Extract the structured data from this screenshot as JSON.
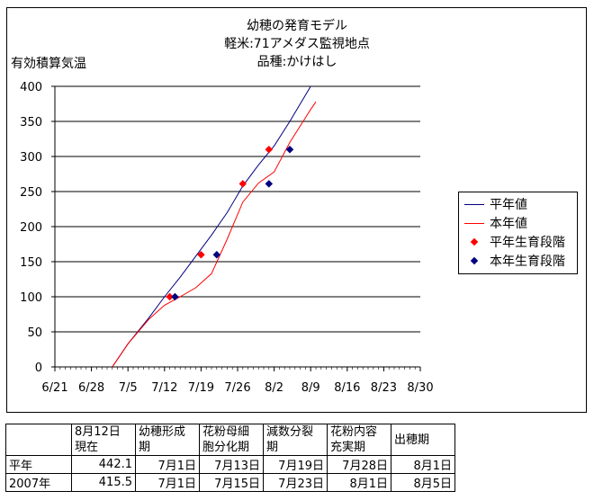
{
  "chart_data": {
    "type": "line",
    "title": [
      "幼穂の発育モデル",
      "軽米:71アメダス監視地点",
      "品種:かけはし"
    ],
    "ylabel": "有効積算気温",
    "ylim": [
      0,
      400
    ],
    "yticks": [
      0,
      50,
      100,
      150,
      200,
      250,
      300,
      350,
      400
    ],
    "xticks": [
      "6/21",
      "6/28",
      "7/5",
      "7/12",
      "7/19",
      "7/26",
      "8/2",
      "8/9",
      "8/16",
      "8/23",
      "8/30"
    ],
    "x_start": "6/21",
    "x_end": "8/30",
    "grid": "horizontal",
    "legend_position": "right",
    "series": [
      {
        "name": "平年値",
        "kind": "line",
        "color": "#000080",
        "points": [
          [
            "7/2",
            0
          ],
          [
            "7/5",
            33
          ],
          [
            "7/9",
            70
          ],
          [
            "7/12",
            100
          ],
          [
            "7/15",
            128
          ],
          [
            "7/18",
            158
          ],
          [
            "7/21",
            188
          ],
          [
            "7/24",
            220
          ],
          [
            "7/27",
            258
          ],
          [
            "7/30",
            288
          ],
          [
            "8/2",
            315
          ],
          [
            "8/5",
            350
          ],
          [
            "8/9",
            400
          ]
        ]
      },
      {
        "name": "本年値",
        "kind": "line",
        "color": "#ff0000",
        "points": [
          [
            "7/2",
            0
          ],
          [
            "7/5",
            33
          ],
          [
            "7/9",
            68
          ],
          [
            "7/12",
            88
          ],
          [
            "7/15",
            100
          ],
          [
            "7/18",
            113
          ],
          [
            "7/21",
            133
          ],
          [
            "7/24",
            182
          ],
          [
            "7/27",
            235
          ],
          [
            "7/30",
            262
          ],
          [
            "8/2",
            278
          ],
          [
            "8/5",
            320
          ],
          [
            "8/9",
            367
          ],
          [
            "8/10",
            378
          ]
        ]
      },
      {
        "name": "平年生育段階",
        "kind": "marker",
        "color": "#ff0000",
        "points": [
          [
            "7/13",
            100
          ],
          [
            "7/19",
            160
          ],
          [
            "7/27",
            261
          ],
          [
            "8/1",
            310
          ]
        ]
      },
      {
        "name": "本年生育段階",
        "kind": "marker",
        "color": "#000080",
        "points": [
          [
            "7/14",
            100
          ],
          [
            "7/22",
            160
          ],
          [
            "8/1",
            261
          ],
          [
            "8/5",
            310
          ]
        ]
      }
    ]
  },
  "table": {
    "headers": [
      [
        "",
        ""
      ],
      [
        "8月12日",
        "現在"
      ],
      [
        "幼穂形成",
        "期"
      ],
      [
        "花粉母細",
        "胞分化期"
      ],
      [
        "減数分裂",
        "期"
      ],
      [
        "花粉内容",
        "充実期"
      ],
      [
        "出穂期",
        ""
      ]
    ],
    "rows": [
      [
        "平年",
        "442.1",
        "7月1日",
        "7月13日",
        "7月19日",
        "7月28日",
        "8月1日"
      ],
      [
        "2007年",
        "415.5",
        "7月1日",
        "7月15日",
        "7月23日",
        "8月1日",
        "8月5日"
      ]
    ]
  }
}
